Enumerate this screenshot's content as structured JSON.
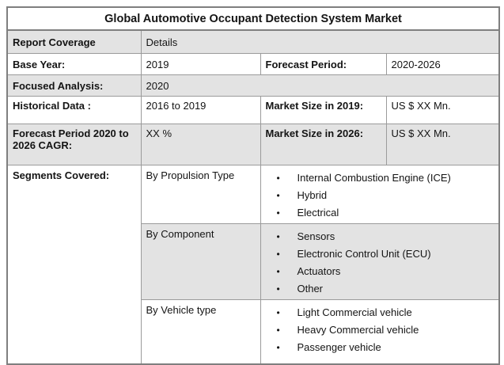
{
  "title": "Global Automotive Occupant Detection System Market",
  "bullet": "•",
  "colors": {
    "stripe_bg": "#e3e3e3",
    "border_inner": "#9b9b9b",
    "border_outer": "#7f7f7f",
    "text": "#141414"
  },
  "rows": {
    "report_coverage": {
      "label": "Report Coverage",
      "value": "Details"
    },
    "base_year": {
      "label": "Base Year:",
      "value": "2019",
      "label2": "Forecast Period:",
      "value2": "2020-2026"
    },
    "focused_analysis": {
      "label": "Focused Analysis:",
      "value": "2020"
    },
    "historical_data": {
      "label": "Historical Data :",
      "value": "2016 to 2019",
      "label2": "Market Size in 2019:",
      "value2": "US $ XX Mn."
    },
    "cagr": {
      "label": "Forecast Period 2020 to 2026 CAGR:",
      "value": "XX %",
      "label2": "Market Size in 2026:",
      "value2": "US $ XX Mn."
    },
    "segments": {
      "label": "Segments Covered:",
      "groups": [
        {
          "name": "By Propulsion Type",
          "items": [
            "Internal Combustion Engine (ICE)",
            "Hybrid",
            "Electrical"
          ]
        },
        {
          "name": "By Component",
          "items": [
            "Sensors",
            "Electronic Control Unit (ECU)",
            "Actuators",
            "Other"
          ]
        },
        {
          "name": "By Vehicle type",
          "items": [
            "Light Commercial vehicle",
            "Heavy Commercial vehicle",
            "Passenger vehicle"
          ]
        }
      ]
    }
  }
}
